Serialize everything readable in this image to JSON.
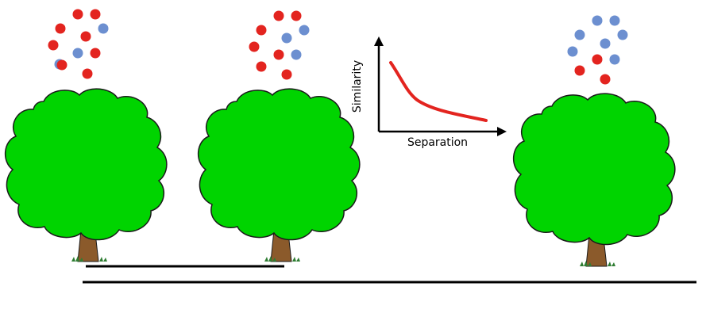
{
  "colors": {
    "red_dot": "#e3241f",
    "blue_dot": "#6c8fd0",
    "foliage": "#00d400",
    "foliage_outline": "#1a1a1a",
    "trunk": "#8b5a2b",
    "grass": "#2e7d32",
    "curve": "#e3241f",
    "line": "#000000"
  },
  "trees": [
    {
      "name": "tree-1",
      "dots": [
        "red",
        "red",
        "red",
        "blue",
        "red",
        "red",
        "blue",
        "red",
        "blue",
        "red",
        "red"
      ]
    },
    {
      "name": "tree-2",
      "dots": [
        "red",
        "red",
        "red",
        "blue",
        "blue",
        "red",
        "red",
        "blue",
        "red",
        "red"
      ]
    },
    {
      "name": "tree-3",
      "dots": [
        "blue",
        "blue",
        "blue",
        "blue",
        "blue",
        "blue",
        "red",
        "blue",
        "red",
        "red"
      ]
    }
  ],
  "inset_chart": {
    "xlabel": "Separation",
    "ylabel": "Similarity",
    "shape": "decreasing"
  },
  "scale_bars": [
    "short",
    "long"
  ]
}
